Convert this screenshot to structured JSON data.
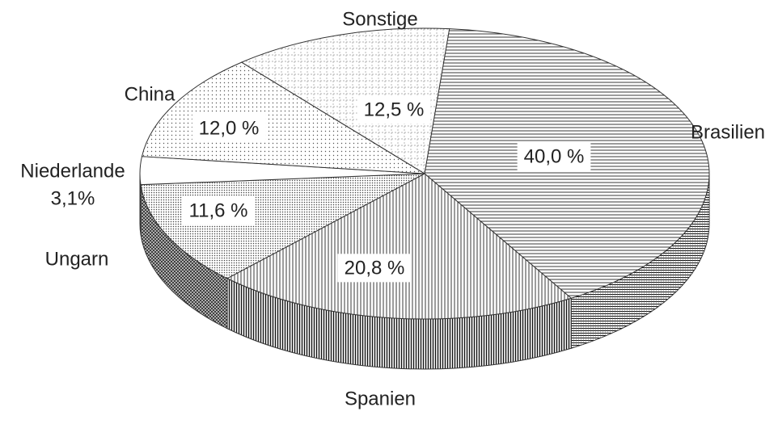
{
  "chart_data": {
    "type": "pie",
    "categories": [
      "Brasilien",
      "Spanien",
      "Ungarn",
      "Niederlande",
      "China",
      "Sonstige"
    ],
    "values": [
      40.0,
      20.8,
      11.6,
      3.1,
      12.0,
      12.5
    ],
    "value_labels": [
      "40,0 %",
      "20,8 %",
      "11,6 %",
      "3,1%",
      "12,0 %",
      "12,5 %"
    ]
  }
}
